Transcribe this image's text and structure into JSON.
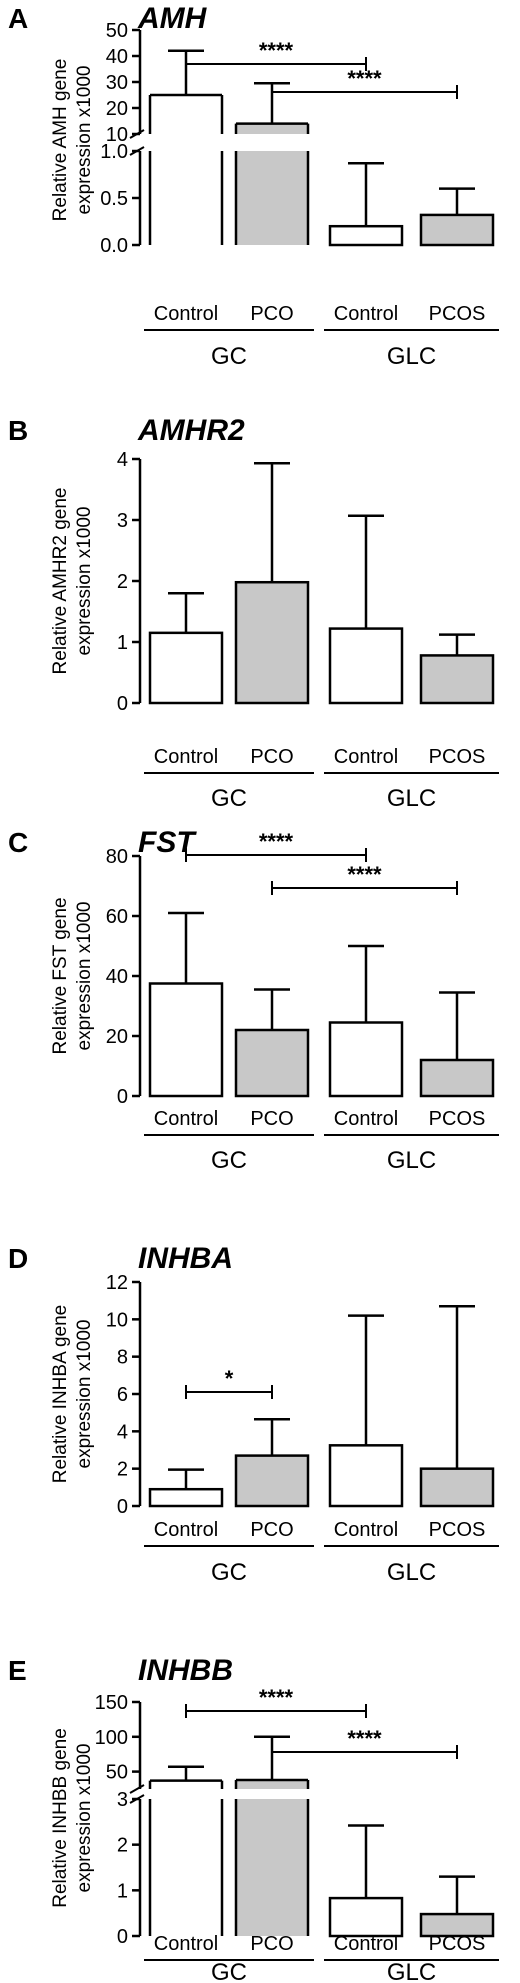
{
  "chart_data": [
    {
      "panel": "A",
      "title": "AMH",
      "type": "bar",
      "ylabel": [
        "Relative AMH gene",
        "expression x1000"
      ],
      "axis_break": true,
      "ylim_upper": [
        10,
        50
      ],
      "yticks_upper": [
        "10",
        "20",
        "30",
        "40",
        "50"
      ],
      "ylim_lower": [
        0,
        1.0
      ],
      "yticks_lower": [
        "0.0",
        "0.5",
        "1.0"
      ],
      "categories": [
        "Control",
        "PCO",
        "Control",
        "PCOS"
      ],
      "groups": [
        {
          "label": "GC",
          "categories": [
            0,
            1
          ]
        },
        {
          "label": "GLC",
          "categories": [
            2,
            3
          ]
        }
      ],
      "values": [
        25,
        14,
        0.2,
        0.32
      ],
      "errors_upper": [
        42,
        29.5,
        0.87,
        0.6
      ],
      "fills": [
        "white",
        "gray",
        "white",
        "gray"
      ],
      "significance": [
        {
          "from": 0,
          "to": 2,
          "label": "****"
        },
        {
          "from": 1,
          "to": 3,
          "label": "****"
        }
      ]
    },
    {
      "panel": "B",
      "title": "AMHR2",
      "type": "bar",
      "ylabel": [
        "Relative AMHR2 gene",
        "expression x1000"
      ],
      "axis_break": false,
      "ylim": [
        0,
        4
      ],
      "yticks": [
        "0",
        "1",
        "2",
        "3",
        "4"
      ],
      "categories": [
        "Control",
        "PCO",
        "Control",
        "PCOS"
      ],
      "groups": [
        {
          "label": "GC",
          "categories": [
            0,
            1
          ]
        },
        {
          "label": "GLC",
          "categories": [
            2,
            3
          ]
        }
      ],
      "values": [
        1.15,
        1.98,
        1.22,
        0.78
      ],
      "errors_upper": [
        1.8,
        3.93,
        3.07,
        1.12
      ],
      "fills": [
        "white",
        "gray",
        "white",
        "gray"
      ],
      "significance": []
    },
    {
      "panel": "C",
      "title": "FST",
      "type": "bar",
      "ylabel": [
        "Relative FST gene",
        "expression x1000"
      ],
      "axis_break": false,
      "ylim": [
        0,
        80
      ],
      "yticks": [
        "0",
        "20",
        "40",
        "60",
        "80"
      ],
      "categories": [
        "Control",
        "PCO",
        "Control",
        "PCOS"
      ],
      "groups": [
        {
          "label": "GC",
          "categories": [
            0,
            1
          ]
        },
        {
          "label": "GLC",
          "categories": [
            2,
            3
          ]
        }
      ],
      "values": [
        37.5,
        22,
        24.5,
        12
      ],
      "errors_upper": [
        61,
        35.5,
        50,
        34.5
      ],
      "fills": [
        "white",
        "gray",
        "white",
        "gray"
      ],
      "significance": [
        {
          "from": 0,
          "to": 2,
          "label": "****"
        },
        {
          "from": 1,
          "to": 3,
          "label": "****"
        }
      ]
    },
    {
      "panel": "D",
      "title": "INHBA",
      "type": "bar",
      "ylabel": [
        "Relative INHBA gene",
        "expression x1000"
      ],
      "axis_break": false,
      "ylim": [
        0,
        12
      ],
      "yticks": [
        "0",
        "2",
        "4",
        "6",
        "8",
        "10",
        "12"
      ],
      "categories": [
        "Control",
        "PCO",
        "Control",
        "PCOS"
      ],
      "groups": [
        {
          "label": "GC",
          "categories": [
            0,
            1
          ]
        },
        {
          "label": "GLC",
          "categories": [
            2,
            3
          ]
        }
      ],
      "values": [
        0.9,
        2.7,
        3.25,
        2.0
      ],
      "errors_upper": [
        1.95,
        4.65,
        10.2,
        10.7
      ],
      "fills": [
        "white",
        "gray",
        "white",
        "gray"
      ],
      "significance": [
        {
          "from": 0,
          "to": 1,
          "label": "*"
        }
      ]
    },
    {
      "panel": "E",
      "title": "INHBB",
      "type": "bar",
      "ylabel": [
        "Relative INHBB gene",
        "expression x1000"
      ],
      "axis_break": true,
      "ylim_upper": [
        25,
        150
      ],
      "yticks_upper": [
        "50",
        "100",
        "150"
      ],
      "ylim_lower": [
        0,
        3
      ],
      "yticks_lower": [
        "0",
        "1",
        "2",
        "3"
      ],
      "categories": [
        "Control",
        "PCO",
        "Control",
        "PCOS"
      ],
      "groups": [
        {
          "label": "GC",
          "categories": [
            0,
            1
          ]
        },
        {
          "label": "GLC",
          "categories": [
            2,
            3
          ]
        }
      ],
      "values": [
        37,
        38,
        0.83,
        0.48
      ],
      "errors_upper": [
        57,
        100,
        2.42,
        1.3
      ],
      "fills": [
        "white",
        "gray",
        "white",
        "gray"
      ],
      "significance": [
        {
          "from": 0,
          "to": 2,
          "label": "****"
        },
        {
          "from": 1,
          "to": 3,
          "label": "****"
        }
      ]
    }
  ]
}
